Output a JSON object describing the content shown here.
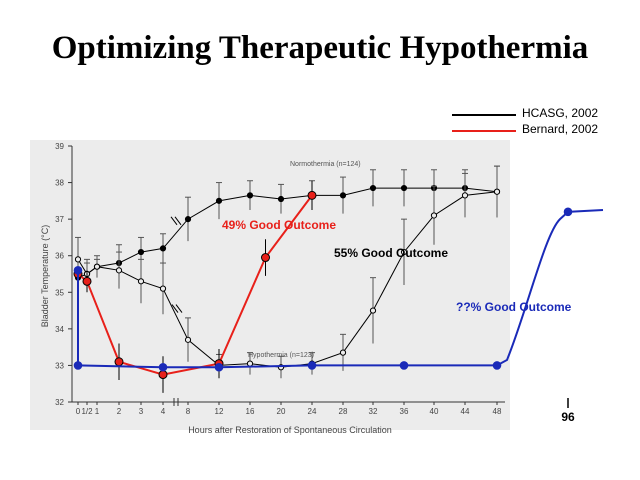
{
  "chart_data": {
    "type": "line",
    "title": "Optimizing Therapeutic Hypothermia",
    "xlabel": "Hours after Restoration of Spontaneous Circulation",
    "ylabel": "Bladder Temperature (°C)",
    "ylim": [
      32,
      39
    ],
    "x_ticks": [
      "0",
      "1/2",
      "1",
      "2",
      "3",
      "4",
      "8",
      "12",
      "16",
      "20",
      "24",
      "28",
      "32",
      "36",
      "40",
      "44",
      "48"
    ],
    "extra_tick": "96",
    "y_ticks": [
      "32",
      "33",
      "34",
      "35",
      "36",
      "37",
      "38",
      "39"
    ],
    "grid": false,
    "legend_position": "top-right",
    "legend": [
      {
        "label": "HCASG, 2002",
        "color": "#000000"
      },
      {
        "label": "Bernard, 2002",
        "color": "#e8201a"
      }
    ],
    "annotations": [
      {
        "text": "Normothermia (n=124)",
        "kind": "note"
      },
      {
        "text": "Hypothermia (n=123)",
        "kind": "note"
      },
      {
        "text": "49% Good Outcome",
        "color": "#e8201a"
      },
      {
        "text": "55% Good Outcome",
        "color": "#000000"
      },
      {
        "text": "??% Good Outcome",
        "color": "#1a2ab8"
      }
    ],
    "series": [
      {
        "label_ref": "normothermia",
        "color": "#000000",
        "marker": "filled-circle",
        "x": [
          "0",
          "1/2",
          "1",
          "2",
          "3",
          "4",
          "8",
          "12",
          "16",
          "20",
          "24",
          "28",
          "32",
          "36",
          "40",
          "44",
          "48"
        ],
        "y": [
          35.4,
          35.5,
          35.7,
          35.8,
          36.1,
          36.2,
          37.0,
          37.5,
          37.65,
          37.55,
          37.65,
          37.65,
          37.85,
          37.85,
          37.85,
          37.85,
          37.75
        ],
        "err": [
          0.5,
          0.3,
          0.2,
          0.5,
          0.4,
          0.4,
          0.6,
          0.5,
          0.4,
          0.4,
          0.4,
          0.5,
          0.5,
          0.5,
          0.5,
          0.5,
          0.7
        ]
      },
      {
        "label_ref": "hypothermia",
        "color": "#000000",
        "marker": "open-circle",
        "x": [
          "0",
          "1/2",
          "1",
          "2",
          "3",
          "4",
          "8",
          "12",
          "16",
          "20",
          "24",
          "28",
          "32",
          "36",
          "40",
          "44",
          "48"
        ],
        "y": [
          35.9,
          35.5,
          35.7,
          35.6,
          35.3,
          35.1,
          33.7,
          33.0,
          33.05,
          32.95,
          33.05,
          33.35,
          34.5,
          36.1,
          37.1,
          37.65,
          37.75
        ],
        "err": [
          0.6,
          0.4,
          0.3,
          0.5,
          0.6,
          0.7,
          0.6,
          0.3,
          0.3,
          0.3,
          0.3,
          0.5,
          0.9,
          0.9,
          0.8,
          0.6,
          0.7
        ]
      },
      {
        "name": "Bernard, 2002",
        "color": "#e8201a",
        "marker": "filled-circle",
        "x": [
          "0",
          "1/2",
          "2",
          "4",
          "12",
          "18",
          "24"
        ],
        "y": [
          35.5,
          35.3,
          33.1,
          32.75,
          33.05,
          35.95,
          37.65
        ],
        "err": [
          0.2,
          0.3,
          0.5,
          0.5,
          0.4,
          0.5,
          0.4
        ]
      },
      {
        "label_ref": "projected",
        "color": "#1a2ab8",
        "marker": "filled-circle",
        "x": [
          "0",
          "0",
          "4",
          "12",
          "24",
          "36",
          "48",
          "96"
        ],
        "y": [
          35.6,
          33.0,
          32.95,
          32.95,
          33.0,
          33.0,
          33.0,
          37.2
        ]
      }
    ]
  }
}
